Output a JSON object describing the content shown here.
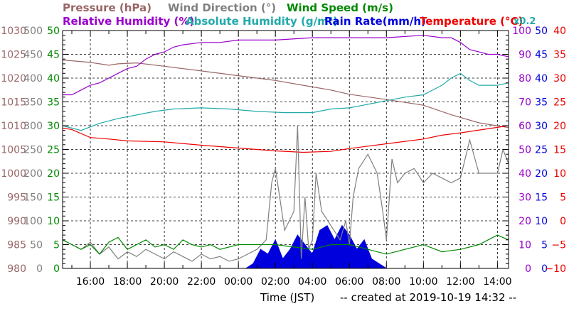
{
  "chart_data": {
    "type": "line",
    "legend_top": {
      "pressure": "Pressure (hPa)",
      "wind_direction": "Wind Direction (°)",
      "wind_speed": "Wind Speed (m/s)"
    },
    "legend_second": {
      "relative_humidity": "Relative Humidity (%)",
      "absolute_humidity": "Absolute Humidity (g/m³)",
      "rain_rate": "Rain Rate(mm/h)",
      "temperature": "Temperature (°C)",
      "absolute_humidity_factor": "x0.2"
    },
    "xlabel": "Time (JST)",
    "created": "-- created at 2019-10-19 14:32 --",
    "x_ticks": [
      "16:00",
      "18:00",
      "20:00",
      "22:00",
      "00:00",
      "02:00",
      "04:00",
      "06:00",
      "08:00",
      "10:00",
      "12:00",
      "14:00"
    ],
    "x_range_hours": [
      14.5,
      38.6
    ],
    "axes": {
      "pressure": {
        "ticks": [
          "1030",
          "1025",
          "1020",
          "1015",
          "1010",
          "1005",
          "1000",
          "995",
          "990",
          "985",
          "980"
        ],
        "range": [
          980,
          1030
        ],
        "color": "#996666"
      },
      "wind_direction": {
        "ticks": [
          "500",
          "450",
          "400",
          "350",
          "300",
          "250",
          "200",
          "150",
          "100",
          "50",
          "0"
        ],
        "range": [
          0,
          500
        ],
        "color": "#808080"
      },
      "wind_speed": {
        "ticks": [
          "50",
          "45",
          "40",
          "35",
          "30",
          "25",
          "20",
          "15",
          "10",
          "5",
          "0"
        ],
        "range": [
          0,
          50
        ],
        "color": "#008800"
      },
      "relative_humidity": {
        "ticks": [
          "100",
          "90",
          "80",
          "70",
          "60",
          "50",
          "40",
          "30",
          "20",
          "10",
          "0"
        ],
        "range": [
          0,
          100
        ],
        "color": "#9900cc"
      },
      "rain_rate": {
        "ticks": [
          "50",
          "45",
          "40",
          "35",
          "30",
          "25",
          "20",
          "15",
          "10",
          "5",
          "0"
        ],
        "range": [
          0,
          50
        ],
        "color": "#0000dd"
      },
      "temperature": {
        "ticks": [
          "40",
          "35",
          "30",
          "25",
          "20",
          "15",
          "10",
          "5",
          "0",
          "−5",
          "−10"
        ],
        "range": [
          -10,
          40
        ],
        "color": "#ee0000"
      }
    },
    "series": [
      {
        "name": "Pressure (hPa)",
        "axis": "pressure",
        "color": "#996666",
        "x": [
          14.5,
          16,
          17,
          17.5,
          18.5,
          20,
          22,
          24,
          26,
          27.5,
          29,
          30,
          32,
          34,
          35.5,
          37,
          38.6
        ],
        "y": [
          1023.8,
          1023.3,
          1022.7,
          1023.0,
          1023.2,
          1022.5,
          1021.5,
          1020.5,
          1019.5,
          1018.5,
          1017.5,
          1016.6,
          1015.5,
          1014.3,
          1012.3,
          1010.6,
          1009.6
        ]
      },
      {
        "name": "Relative Humidity (%)",
        "axis": "relative_humidity",
        "color": "#9900cc",
        "x": [
          14.5,
          15,
          15.5,
          16,
          16.5,
          17,
          17.5,
          18,
          18.5,
          19,
          19.5,
          20,
          20.5,
          21,
          22,
          23,
          24,
          26,
          28,
          30,
          32,
          34,
          35,
          35.5,
          36,
          36.5,
          37,
          37.5,
          38,
          38.6
        ],
        "y": [
          73,
          73,
          75,
          77,
          78,
          80,
          82,
          84,
          85,
          88,
          90,
          91,
          93,
          94,
          95,
          95,
          96,
          96,
          97,
          97,
          97,
          98,
          97,
          97,
          95,
          92,
          91,
          90,
          90,
          89
        ]
      },
      {
        "name": "Absolute Humidity (g/m³)",
        "axis": "relative_humidity",
        "color": "#22aaaa",
        "x": [
          14.5,
          15.5,
          16.5,
          17.5,
          18.5,
          19.5,
          20.5,
          22,
          23.5,
          25,
          26.5,
          28,
          29,
          30,
          31,
          32,
          33,
          34,
          35,
          35.5,
          36,
          36.5,
          37,
          38,
          38.6
        ],
        "y": [
          60,
          58,
          61,
          63,
          64.5,
          66,
          67,
          67.5,
          67,
          66,
          65.5,
          65.5,
          67,
          67.5,
          69,
          70.5,
          72,
          73,
          77,
          80,
          82,
          79,
          77,
          77,
          78
        ]
      },
      {
        "name": "Temperature (°C)",
        "axis": "temperature",
        "color": "#ee0000",
        "x": [
          14.5,
          15,
          16,
          17,
          18,
          20,
          22,
          24,
          26,
          27.5,
          29,
          30,
          32,
          34,
          35,
          36,
          38.6
        ],
        "y": [
          19.5,
          19.2,
          17.5,
          17.2,
          16.8,
          16.6,
          15.9,
          15.3,
          14.7,
          14.4,
          14.6,
          15.2,
          16.2,
          17.2,
          18.0,
          18.5,
          20.0
        ]
      },
      {
        "name": "Wind Direction (°)",
        "axis": "wind_direction",
        "color": "#808080",
        "x": [
          14.5,
          15,
          15.5,
          16,
          16.5,
          17,
          17.5,
          18,
          18.5,
          19,
          19.5,
          20,
          20.5,
          21,
          21.5,
          22,
          22.5,
          23,
          23.5,
          24,
          24.5,
          25,
          25.5,
          25.8,
          26,
          26.5,
          27,
          27.2,
          27.4,
          27.6,
          27.8,
          28,
          28.2,
          28.5,
          29,
          29.5,
          29.8,
          30,
          30.2,
          30.5,
          31,
          31.5,
          31.8,
          32,
          32.3,
          32.6,
          33,
          33.5,
          34,
          34.5,
          35,
          35.5,
          36,
          36.5,
          37,
          37.5,
          38,
          38.3,
          38.6
        ],
        "y": [
          60,
          50,
          40,
          55,
          30,
          45,
          20,
          35,
          25,
          40,
          30,
          20,
          35,
          25,
          15,
          30,
          20,
          25,
          15,
          20,
          30,
          40,
          60,
          180,
          210,
          80,
          120,
          300,
          20,
          150,
          40,
          60,
          200,
          120,
          90,
          60,
          100,
          50,
          150,
          210,
          240,
          200,
          120,
          60,
          230,
          180,
          200,
          210,
          180,
          200,
          190,
          180,
          190,
          270,
          200,
          200,
          200,
          250,
          220
        ]
      },
      {
        "name": "Wind Speed (m/s)",
        "axis": "wind_speed",
        "color": "#008800",
        "x": [
          14.5,
          15,
          15.5,
          16,
          16.5,
          17,
          17.5,
          18,
          18.5,
          19,
          19.5,
          20,
          20.5,
          21,
          21.5,
          22,
          22.5,
          23,
          23.5,
          24,
          25,
          26,
          27,
          28,
          29,
          30,
          31,
          32,
          33,
          34,
          35,
          36,
          37,
          38,
          38.6
        ],
        "y": [
          6,
          5,
          4,
          5,
          3,
          5.5,
          6.5,
          4,
          5,
          6,
          4.5,
          5,
          4,
          6,
          5,
          4.5,
          5,
          4,
          4.5,
          5,
          5,
          5,
          4.5,
          4,
          5,
          5,
          4,
          3,
          4,
          5,
          3.5,
          4,
          5,
          7,
          6
        ]
      },
      {
        "name": "Rain Rate(mm/h)",
        "axis": "rain_rate",
        "color": "#0000dd",
        "x": [
          24.4,
          24.8,
          25.2,
          25.6,
          26.0,
          26.4,
          26.8,
          27.2,
          27.6,
          28.0,
          28.4,
          28.8,
          29.2,
          29.6,
          30.0,
          30.4,
          30.8,
          31.2,
          31.6,
          32.0
        ],
        "y": [
          0,
          1,
          4,
          3,
          6,
          2,
          4,
          7,
          5,
          3,
          8,
          9,
          6,
          9,
          7,
          4,
          6,
          2,
          1,
          0
        ]
      }
    ]
  }
}
